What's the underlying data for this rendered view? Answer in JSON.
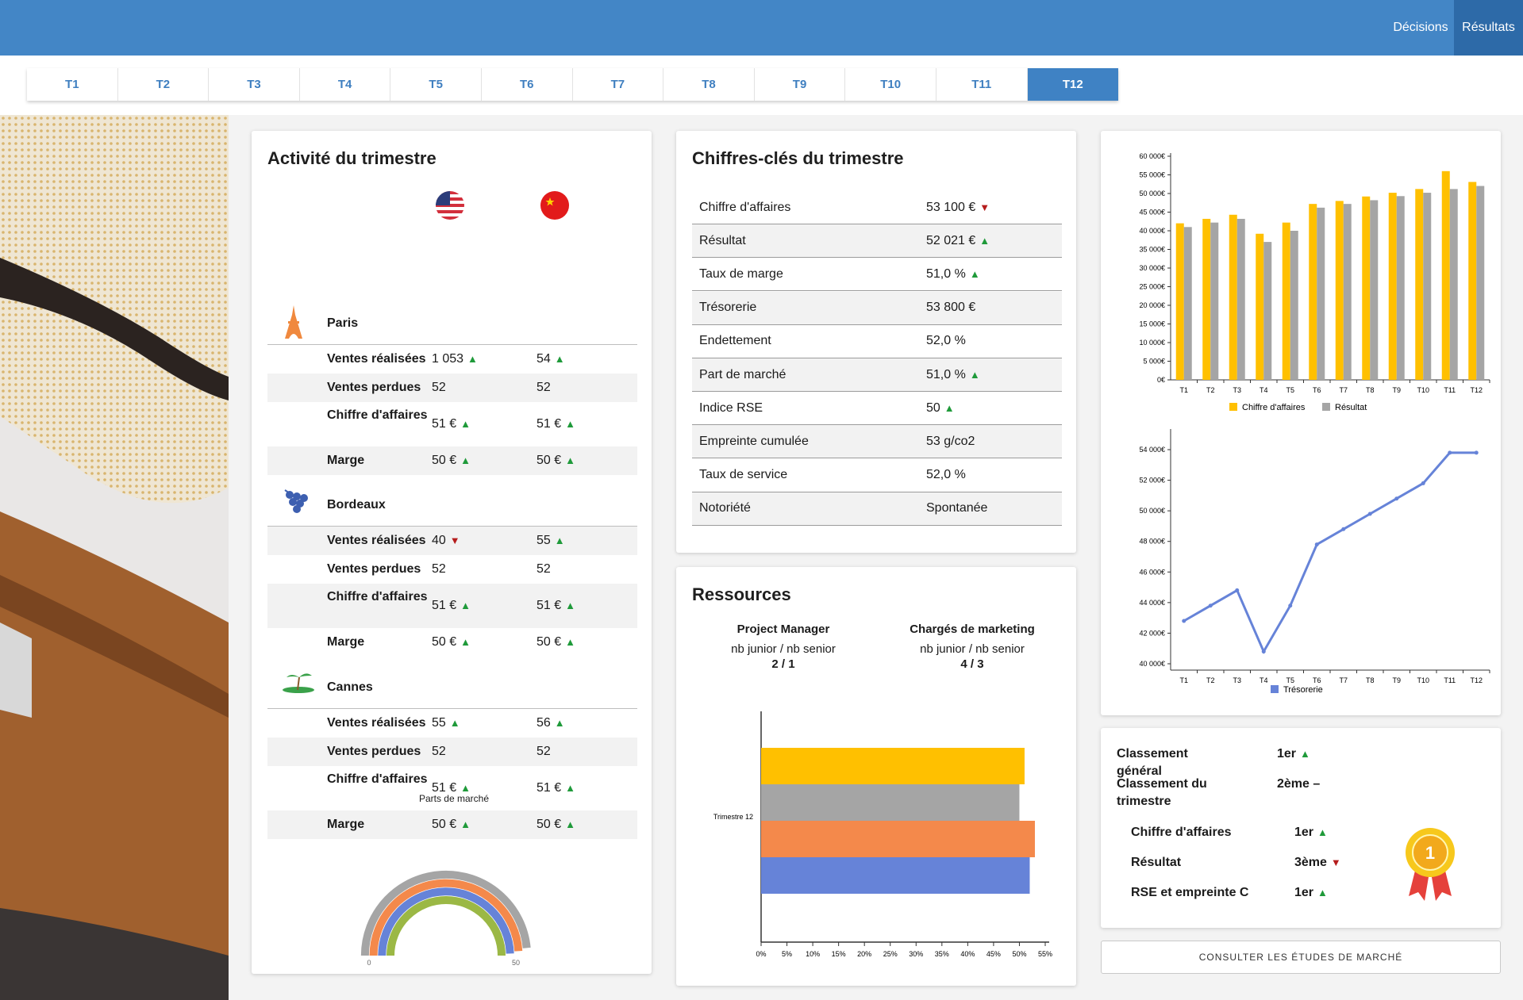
{
  "nav": {
    "decisions": "Décisions",
    "results": "Résultats"
  },
  "tabs": [
    "T1",
    "T2",
    "T3",
    "T4",
    "T5",
    "T6",
    "T7",
    "T8",
    "T9",
    "T10",
    "T11",
    "T12"
  ],
  "active_tab": "T12",
  "activity": {
    "title": "Activité du trimestre",
    "flags": [
      "us-flag-icon",
      "china-flag-icon"
    ],
    "cities": [
      {
        "name": "Paris",
        "icon": "eiffel-tower-icon",
        "rows": [
          {
            "label": "Ventes réalisées",
            "us": "1 053",
            "us_trend": "up",
            "cn": "54",
            "cn_trend": "up"
          },
          {
            "label": "Ventes perdues",
            "us": "52",
            "us_trend": "",
            "cn": "52",
            "cn_trend": ""
          },
          {
            "label": "Chiffre d'affaires",
            "us": "51 €",
            "us_trend": "up",
            "cn": "51 €",
            "cn_trend": "up"
          },
          {
            "label": "Marge",
            "us": "50 €",
            "us_trend": "up",
            "cn": "50 €",
            "cn_trend": "up"
          }
        ]
      },
      {
        "name": "Bordeaux",
        "icon": "grapes-icon",
        "rows": [
          {
            "label": "Ventes réalisées",
            "us": "40",
            "us_trend": "down",
            "cn": "55",
            "cn_trend": "up"
          },
          {
            "label": "Ventes perdues",
            "us": "52",
            "us_trend": "",
            "cn": "52",
            "cn_trend": ""
          },
          {
            "label": "Chiffre d'affaires",
            "us": "51 €",
            "us_trend": "up",
            "cn": "51 €",
            "cn_trend": "up"
          },
          {
            "label": "Marge",
            "us": "50 €",
            "us_trend": "up",
            "cn": "50 €",
            "cn_trend": "up"
          }
        ]
      },
      {
        "name": "Cannes",
        "icon": "palm-island-icon",
        "rows": [
          {
            "label": "Ventes réalisées",
            "us": "55",
            "us_trend": "up",
            "cn": "56",
            "cn_trend": "up"
          },
          {
            "label": "Ventes perdues",
            "us": "52",
            "us_trend": "",
            "cn": "52",
            "cn_trend": ""
          },
          {
            "label": "Chiffre d'affaires",
            "us": "51 €",
            "us_trend": "up",
            "cn": "51 €",
            "cn_trend": "up"
          },
          {
            "label": "Marge",
            "us": "50 €",
            "us_trend": "up",
            "cn": "50 €",
            "cn_trend": "up"
          }
        ]
      }
    ]
  },
  "key_figures": {
    "title": "Chiffres-clés du trimestre",
    "rows": [
      {
        "label": "Chiffre d'affaires",
        "value": "53 100 €",
        "trend": "down"
      },
      {
        "label": "Résultat",
        "value": "52 021 €",
        "trend": "up"
      },
      {
        "label": "Taux de marge",
        "value": "51,0 %",
        "trend": "up"
      },
      {
        "label": "Trésorerie",
        "value": "53 800 €",
        "trend": ""
      },
      {
        "label": "Endettement",
        "value": "52,0 %",
        "trend": ""
      },
      {
        "label": "Part de marché",
        "value": "51,0 %",
        "trend": "up"
      },
      {
        "label": "Indice RSE",
        "value": "50",
        "trend": "up"
      },
      {
        "label": "Empreinte cumulée",
        "value": "53 g/co2",
        "trend": ""
      },
      {
        "label": "Taux de service",
        "value": "52,0 %",
        "trend": ""
      },
      {
        "label": "Notoriété",
        "value": "Spontanée",
        "trend": ""
      }
    ]
  },
  "resources": {
    "title": "Ressources",
    "groups": [
      {
        "title": "Project Manager",
        "sub": "nb junior / nb senior",
        "value": "2 / 1"
      },
      {
        "title": "Chargés de marketing",
        "sub": "nb junior / nb senior",
        "value": "4 / 3"
      }
    ]
  },
  "ranking": {
    "rows": [
      {
        "label": "Classement général",
        "value": "1er",
        "trend": "up"
      },
      {
        "label": "Classement du trimestre",
        "value": "2ème –",
        "trend": ""
      }
    ],
    "sub_rows": [
      {
        "label": "Chiffre d'affaires",
        "value": "1er",
        "trend": "up"
      },
      {
        "label": "Résultat",
        "value": "3ème",
        "trend": "down"
      },
      {
        "label": "RSE et empreinte C",
        "value": "1er",
        "trend": "up"
      }
    ],
    "medal_text": "1"
  },
  "market_button": "CONSULTER LES ÉTUDES DE MARCHÉ",
  "colors": {
    "up": "#1f9a3a",
    "down": "#b51c1c",
    "accent": "#4386c6",
    "yellow": "#ffc000",
    "grey": "#a5a5a5",
    "orange": "#f4894b",
    "blue": "#6683d8",
    "green": "#9bb845"
  },
  "chart_data": [
    {
      "type": "bar",
      "categories": [
        "T1",
        "T2",
        "T3",
        "T4",
        "T5",
        "T6",
        "T7",
        "T8",
        "T9",
        "T10",
        "T11",
        "T12"
      ],
      "series": [
        {
          "name": "Chiffre d'affaires",
          "values": [
            42000,
            43200,
            44300,
            39200,
            42200,
            47200,
            48000,
            49200,
            50200,
            51200,
            56000,
            53100
          ]
        },
        {
          "name": "Résultat",
          "values": [
            41000,
            42200,
            43200,
            37000,
            40000,
            46200,
            47200,
            48200,
            49300,
            50200,
            51200,
            52021
          ]
        }
      ],
      "ylim": [
        0,
        60000
      ],
      "yticks": [
        "0€",
        "5 000€",
        "10 000€",
        "15 000€",
        "20 000€",
        "25 000€",
        "30 000€",
        "35 000€",
        "40 000€",
        "45 000€",
        "50 000€",
        "55 000€",
        "60 000€"
      ]
    },
    {
      "type": "line",
      "categories": [
        "T1",
        "T2",
        "T3",
        "T4",
        "T5",
        "T6",
        "T7",
        "T8",
        "T9",
        "T10",
        "T11",
        "T12"
      ],
      "series": [
        {
          "name": "Trésorerie",
          "values": [
            42800,
            43800,
            44800,
            40800,
            43800,
            47800,
            48800,
            49800,
            50800,
            51800,
            53800,
            53800
          ]
        }
      ],
      "ylim": [
        40000,
        54000
      ],
      "yticks": [
        "40 000€",
        "42 000€",
        "44 000€",
        "46 000€",
        "48 000€",
        "50 000€",
        "52 000€",
        "54 000€"
      ]
    },
    {
      "type": "bar",
      "orientation": "horizontal",
      "categories": [
        "Trimestre 12"
      ],
      "series": [
        {
          "values": [
            51
          ]
        },
        {
          "values": [
            50
          ]
        },
        {
          "values": [
            53
          ]
        },
        {
          "values": [
            52
          ]
        }
      ],
      "xlim": [
        0,
        55
      ],
      "xticks": [
        "0%",
        "5%",
        "10%",
        "15%",
        "20%",
        "25%",
        "30%",
        "35%",
        "40%",
        "45%",
        "50%",
        "55%"
      ]
    },
    {
      "type": "pie",
      "title": "Parts de marché",
      "rings": [
        {
          "value": 97
        },
        {
          "value": 98
        },
        {
          "value": 99
        },
        {
          "value": 100
        }
      ],
      "axis_labels": [
        "0",
        "50"
      ]
    }
  ]
}
